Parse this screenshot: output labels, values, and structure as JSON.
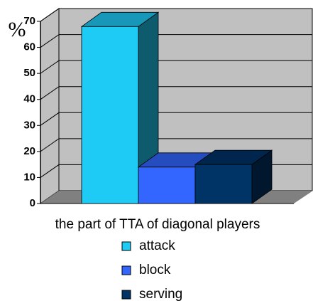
{
  "chart_data": {
    "type": "bar3d",
    "ylabel": "%",
    "categories": [
      "the part of TTA of diagonal players"
    ],
    "series": [
      {
        "name": "attack",
        "color": "#1ecbf5",
        "values": [
          68
        ]
      },
      {
        "name": "block",
        "color": "#3366ff",
        "values": [
          14
        ]
      },
      {
        "name": "serving",
        "color": "#003366",
        "values": [
          15
        ]
      }
    ],
    "ylim": [
      0,
      70
    ],
    "yticks": [
      0,
      10,
      20,
      30,
      40,
      50,
      60,
      70
    ],
    "grid": true,
    "legend": "bottom"
  }
}
